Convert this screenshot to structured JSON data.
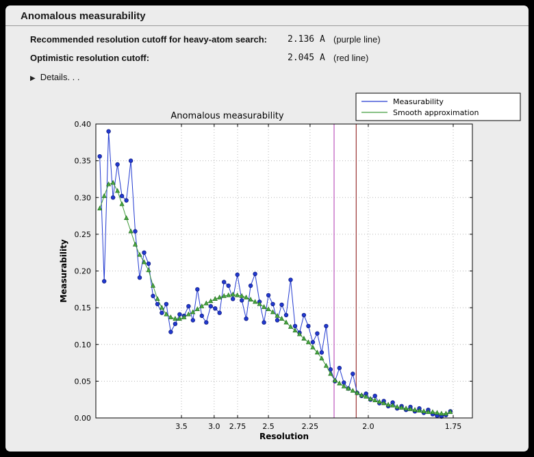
{
  "window": {
    "title": "Anomalous measurability"
  },
  "cutoffs": [
    {
      "label": "Recommended resolution cutoff for heavy-atom search:",
      "value": "2.136 A",
      "note": "(purple line)"
    },
    {
      "label": "Optimistic resolution cutoff:",
      "value": "2.045 A",
      "note": "(red line)"
    }
  ],
  "details": {
    "label": "Details. . ."
  },
  "chart_data": {
    "type": "line",
    "title": "Anomalous measurability",
    "xlabel": "Resolution",
    "ylabel": "Measurability",
    "x_axis": {
      "scale": "inverse_d_squared",
      "xlim_inv_d2": [
        0.0045,
        0.3438
      ],
      "ticks_resolution": [
        3.5,
        3.0,
        2.75,
        2.5,
        2.25,
        2.0,
        1.75
      ],
      "tick_labels": [
        "3.5",
        "3.0",
        "2.75",
        "2.5",
        "2.25",
        "2.0",
        "1.75"
      ]
    },
    "ylim": [
      0.0,
      0.4
    ],
    "yticks": [
      0.0,
      0.05,
      0.1,
      0.15,
      0.2,
      0.25,
      0.3,
      0.35,
      0.4
    ],
    "grid": true,
    "legend_position": "upper right",
    "legend_entries": [
      "Measurability",
      "Smooth approximation"
    ],
    "x_inv_d2": [
      0.008,
      0.012,
      0.016,
      0.02,
      0.024,
      0.028,
      0.032,
      0.036,
      0.04,
      0.044,
      0.048,
      0.052,
      0.056,
      0.06,
      0.064,
      0.068,
      0.072,
      0.076,
      0.08,
      0.084,
      0.088,
      0.092,
      0.096,
      0.1,
      0.104,
      0.108,
      0.112,
      0.116,
      0.12,
      0.124,
      0.128,
      0.132,
      0.136,
      0.14,
      0.144,
      0.148,
      0.152,
      0.156,
      0.16,
      0.164,
      0.168,
      0.172,
      0.176,
      0.18,
      0.184,
      0.188,
      0.192,
      0.196,
      0.2,
      0.204,
      0.208,
      0.212,
      0.216,
      0.22,
      0.224,
      0.228,
      0.232,
      0.236,
      0.24,
      0.244,
      0.248,
      0.252,
      0.256,
      0.26,
      0.264,
      0.268,
      0.272,
      0.276,
      0.28,
      0.284,
      0.288,
      0.292,
      0.296,
      0.3,
      0.304,
      0.308,
      0.312,
      0.316,
      0.32,
      0.324
    ],
    "series": [
      {
        "name": "Measurability",
        "color": "#2038d0",
        "marker": "circle",
        "marker_fill": "#2038d0",
        "marker_edge": "#101c80",
        "values": [
          0.356,
          0.186,
          0.39,
          0.3,
          0.345,
          0.302,
          0.296,
          0.35,
          0.254,
          0.191,
          0.225,
          0.21,
          0.166,
          0.155,
          0.143,
          0.155,
          0.117,
          0.128,
          0.141,
          0.139,
          0.152,
          0.133,
          0.175,
          0.139,
          0.13,
          0.152,
          0.149,
          0.143,
          0.185,
          0.18,
          0.162,
          0.195,
          0.16,
          0.135,
          0.18,
          0.196,
          0.158,
          0.13,
          0.167,
          0.155,
          0.133,
          0.154,
          0.14,
          0.188,
          0.125,
          0.116,
          0.14,
          0.125,
          0.103,
          0.115,
          0.089,
          0.125,
          0.066,
          0.05,
          0.068,
          0.048,
          0.04,
          0.06,
          0.034,
          0.03,
          0.033,
          0.025,
          0.03,
          0.02,
          0.023,
          0.016,
          0.021,
          0.013,
          0.016,
          0.011,
          0.015,
          0.009,
          0.013,
          0.007,
          0.011,
          0.005,
          0.003,
          0.002,
          0.004,
          0.009
        ]
      },
      {
        "name": "Smooth approximation",
        "color": "#3f9a3a",
        "marker": "triangle",
        "marker_fill": "#4aa93f",
        "marker_edge": "#1d6b1d",
        "values": [
          0.285,
          0.302,
          0.318,
          0.32,
          0.309,
          0.291,
          0.272,
          0.254,
          0.236,
          0.222,
          0.212,
          0.201,
          0.18,
          0.162,
          0.15,
          0.141,
          0.137,
          0.135,
          0.135,
          0.137,
          0.141,
          0.144,
          0.148,
          0.152,
          0.156,
          0.159,
          0.162,
          0.164,
          0.166,
          0.167,
          0.168,
          0.167,
          0.166,
          0.164,
          0.161,
          0.158,
          0.155,
          0.151,
          0.148,
          0.144,
          0.139,
          0.135,
          0.13,
          0.124,
          0.119,
          0.114,
          0.108,
          0.103,
          0.096,
          0.089,
          0.081,
          0.071,
          0.06,
          0.051,
          0.047,
          0.043,
          0.04,
          0.037,
          0.034,
          0.031,
          0.029,
          0.026,
          0.024,
          0.022,
          0.02,
          0.018,
          0.017,
          0.015,
          0.014,
          0.013,
          0.012,
          0.011,
          0.01,
          0.009,
          0.008,
          0.008,
          0.007,
          0.006,
          0.006,
          0.008
        ]
      }
    ],
    "vlines": [
      {
        "name": "purple line",
        "resolution": 2.136,
        "color": "#bb55bb"
      },
      {
        "name": "red line",
        "resolution": 2.045,
        "color": "#993333"
      }
    ]
  }
}
